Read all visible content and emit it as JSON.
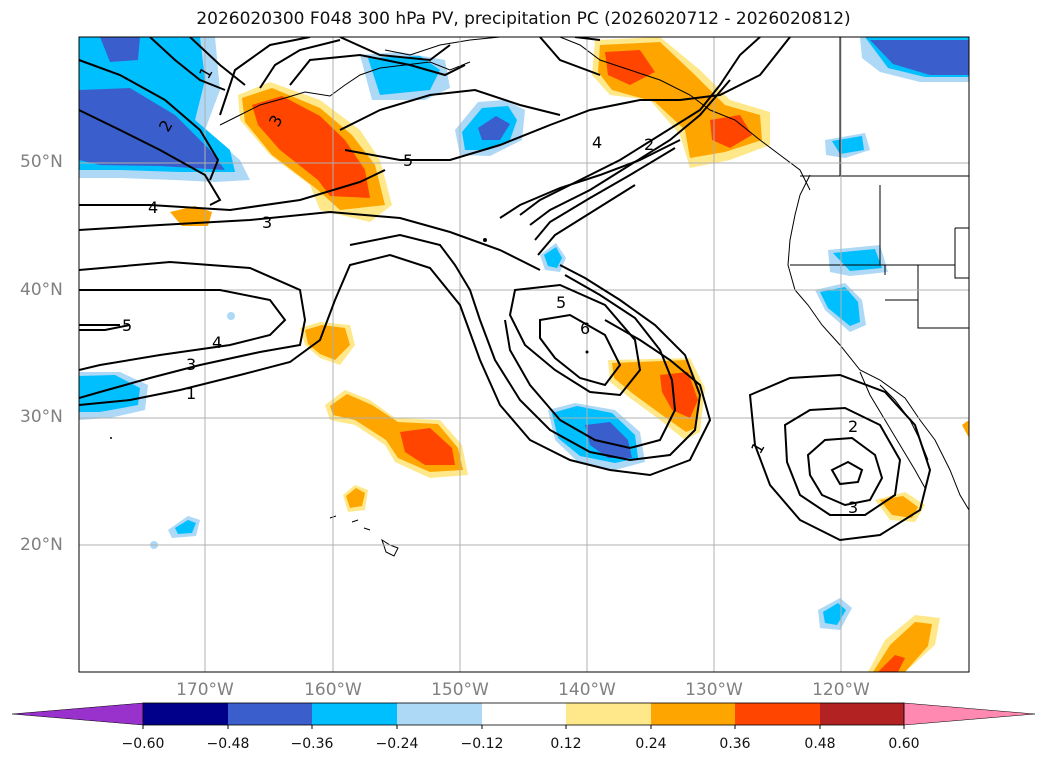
{
  "title": "2026020300 F048 300 hPa PV, precipitation PC (2026020712 - 2026020812)",
  "map": {
    "lon_range": [
      -180,
      -110
    ],
    "lat_range": [
      10,
      60
    ],
    "lat_labels": [
      "50°N",
      "40°N",
      "30°N",
      "20°N"
    ],
    "lon_labels": [
      "170°W",
      "160°W",
      "150°W",
      "140°W",
      "130°W",
      "120°W"
    ],
    "grid": true
  },
  "pv_contour_labels": [
    "1",
    "3",
    "2",
    "4",
    "3",
    "5",
    "5",
    "4",
    "3",
    "1",
    "4",
    "2",
    "5",
    "6",
    "1",
    "2",
    "3"
  ],
  "colorbar": {
    "ticks": [
      "−0.60",
      "−0.48",
      "−0.36",
      "−0.24",
      "−0.12",
      "0.12",
      "0.24",
      "0.36",
      "0.48",
      "0.60"
    ],
    "colors": [
      "#9932cc",
      "#00008b",
      "#3a5fcd",
      "#00bfff",
      "#add8f6",
      "#ffffff",
      "#ffe88a",
      "#ffa500",
      "#ff4500",
      "#b22222",
      "#ff89b0"
    ]
  },
  "fill_colors": {
    "light_blue": "#add8f6",
    "blue": "#00bfff",
    "dark_blue": "#3a5fcd",
    "light_yellow": "#ffe88a",
    "orange": "#ffa500",
    "red_orange": "#ff4500"
  }
}
